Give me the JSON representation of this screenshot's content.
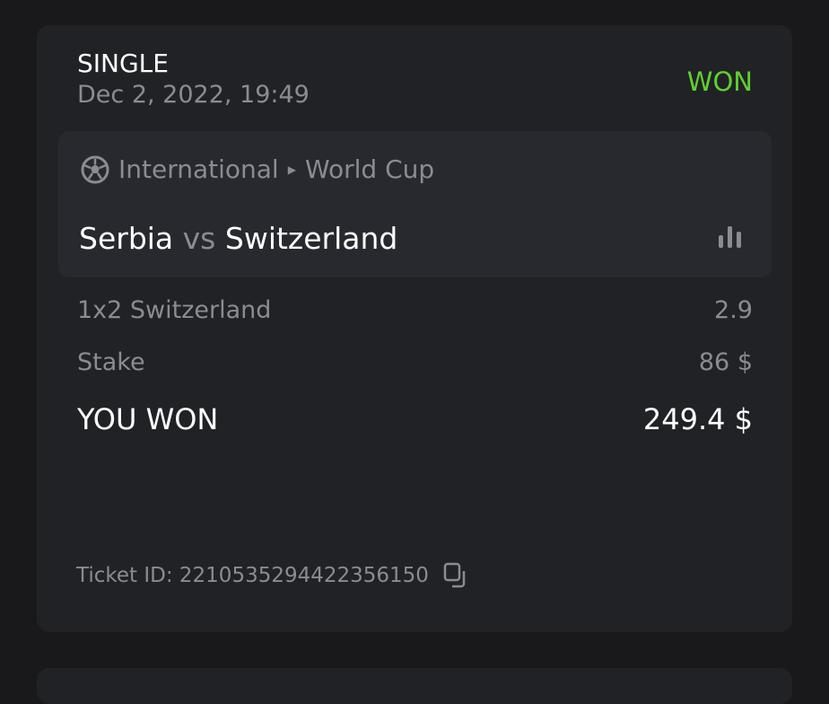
{
  "bet": {
    "type": "SINGLE",
    "date": "Dec 2, 2022, 19:49",
    "status": "WON",
    "status_color": "#5fd12f"
  },
  "event": {
    "category": "International",
    "league": "World Cup",
    "home": "Serbia",
    "vs": "vs",
    "away": "Switzerland",
    "sport_icon": "soccer-ball-icon",
    "stats_icon": "bar-chart-icon"
  },
  "selection": {
    "label": "1x2 Switzerland",
    "odds": "2.9"
  },
  "stake": {
    "label": "Stake",
    "value": "86 $"
  },
  "payout": {
    "label": "YOU WON",
    "value": "249.4 $"
  },
  "ticket": {
    "label": "Ticket ID: 2210535294422356150",
    "copy_icon": "copy-icon"
  }
}
